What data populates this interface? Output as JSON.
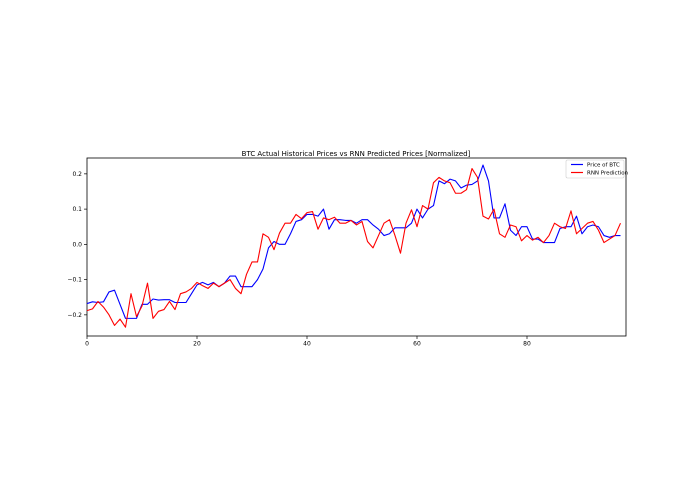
{
  "chart_data": {
    "type": "line",
    "title": "BTC Actual Historical Prices vs RNN Predicted Prices [Normalized]",
    "xlabel": "",
    "ylabel": "",
    "xlim": [
      0,
      98
    ],
    "ylim": [
      -0.26,
      0.245
    ],
    "xticks": [
      0,
      20,
      40,
      60,
      80
    ],
    "yticks": [
      -0.2,
      -0.1,
      0.0,
      0.1,
      0.2
    ],
    "xtick_labels": [
      "0",
      "20",
      "40",
      "60",
      "80"
    ],
    "ytick_labels": [
      "−0.2",
      "−0.1",
      "0.0",
      "0.1",
      "0.2"
    ],
    "grid": false,
    "legend_position": "top-right",
    "series": [
      {
        "name": "Price of BTC",
        "color": "#0000ff",
        "values": [
          -0.168,
          -0.163,
          -0.165,
          -0.163,
          -0.135,
          -0.13,
          -0.17,
          -0.21,
          -0.21,
          -0.21,
          -0.17,
          -0.17,
          -0.155,
          -0.158,
          -0.157,
          -0.157,
          -0.165,
          -0.165,
          -0.165,
          -0.14,
          -0.115,
          -0.108,
          -0.115,
          -0.108,
          -0.12,
          -0.11,
          -0.09,
          -0.09,
          -0.12,
          -0.12,
          -0.12,
          -0.1,
          -0.07,
          -0.01,
          0.008,
          0.0,
          0.0,
          0.03,
          0.065,
          0.07,
          0.085,
          0.085,
          0.08,
          0.1,
          0.043,
          0.07,
          0.07,
          0.068,
          0.068,
          0.06,
          0.07,
          0.07,
          0.055,
          0.043,
          0.025,
          0.03,
          0.047,
          0.047,
          0.047,
          0.06,
          0.1,
          0.075,
          0.1,
          0.11,
          0.18,
          0.172,
          0.185,
          0.18,
          0.16,
          0.168,
          0.17,
          0.18,
          0.225,
          0.18,
          0.075,
          0.075,
          0.115,
          0.04,
          0.025,
          0.05,
          0.05,
          0.015,
          0.015,
          0.005,
          0.005,
          0.005,
          0.045,
          0.05,
          0.05,
          0.08,
          0.03,
          0.05,
          0.055,
          0.05,
          0.025,
          0.02,
          0.025,
          0.025
        ]
      },
      {
        "name": "RNN Prediction",
        "color": "#ff0000",
        "values": [
          -0.188,
          -0.183,
          -0.162,
          -0.178,
          -0.2,
          -0.23,
          -0.212,
          -0.235,
          -0.14,
          -0.205,
          -0.175,
          -0.11,
          -0.21,
          -0.19,
          -0.185,
          -0.162,
          -0.185,
          -0.14,
          -0.135,
          -0.125,
          -0.108,
          -0.117,
          -0.125,
          -0.11,
          -0.12,
          -0.11,
          -0.1,
          -0.125,
          -0.14,
          -0.085,
          -0.05,
          -0.05,
          0.03,
          0.02,
          -0.015,
          0.032,
          0.06,
          0.06,
          0.085,
          0.073,
          0.09,
          0.093,
          0.043,
          0.075,
          0.07,
          0.077,
          0.06,
          0.06,
          0.068,
          0.055,
          0.065,
          0.008,
          -0.01,
          0.025,
          0.06,
          0.07,
          0.025,
          -0.025,
          0.06,
          0.098,
          0.05,
          0.11,
          0.1,
          0.175,
          0.19,
          0.18,
          0.175,
          0.145,
          0.145,
          0.155,
          0.215,
          0.19,
          0.08,
          0.072,
          0.1,
          0.03,
          0.02,
          0.055,
          0.05,
          0.01,
          0.025,
          0.012,
          0.02,
          0.005,
          0.025,
          0.06,
          0.05,
          0.045,
          0.095,
          0.03,
          0.045,
          0.06,
          0.065,
          0.04,
          0.005,
          0.015,
          0.025,
          0.06
        ]
      }
    ]
  }
}
